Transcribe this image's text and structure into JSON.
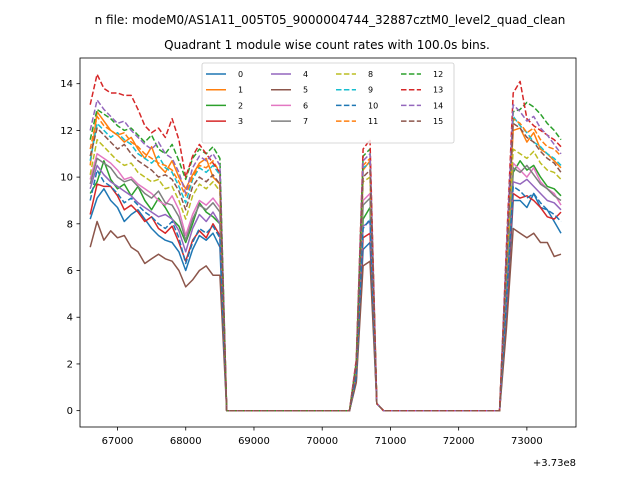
{
  "chart_data": {
    "type": "line",
    "suptitle": "n file: modeM0/AS1A11_005T05_9000004744_32887cztM0_level2_quad_clean",
    "title": "Quadrant 1 module wise count rates with 100.0s bins.",
    "xlabel": "",
    "ylabel": "",
    "x_offset_label": "+3.73e8",
    "xlim": [
      66450,
      73720
    ],
    "ylim": [
      -0.7,
      15.1
    ],
    "xticks": [
      67000,
      68000,
      69000,
      70000,
      71000,
      72000,
      73000
    ],
    "yticks": [
      0,
      2,
      4,
      6,
      8,
      10,
      12,
      14
    ],
    "legend_location": "upper-center",
    "legend_columns": 4,
    "x": [
      66600,
      66700,
      66800,
      66900,
      67000,
      67100,
      67200,
      67300,
      67400,
      67500,
      67600,
      67700,
      67800,
      67900,
      68000,
      68100,
      68200,
      68300,
      68400,
      68500,
      68600,
      68700,
      68800,
      68900,
      69000,
      69100,
      69200,
      69300,
      69400,
      69500,
      69600,
      69700,
      69800,
      69900,
      70000,
      70100,
      70200,
      70300,
      70400,
      70500,
      70600,
      70700,
      70800,
      70900,
      71000,
      71100,
      71200,
      71300,
      71400,
      71500,
      71600,
      71700,
      71800,
      71900,
      72000,
      72100,
      72200,
      72300,
      72400,
      72500,
      72600,
      72700,
      72800,
      72900,
      73000,
      73100,
      73200,
      73300,
      73400,
      73500
    ],
    "series": [
      {
        "name": "0",
        "color": "#1f77b4",
        "dash": false,
        "values": [
          8.2,
          9.1,
          9.5,
          9.0,
          8.7,
          8.1,
          8.4,
          8.6,
          8.2,
          7.8,
          7.5,
          7.3,
          7.2,
          6.8,
          6.0,
          6.9,
          7.5,
          7.3,
          7.6,
          7.0,
          0,
          0,
          0,
          0,
          0,
          0,
          0,
          0,
          0,
          0,
          0,
          0,
          0,
          0,
          0,
          0,
          0,
          0,
          0,
          1.3,
          6.9,
          7.2,
          0.3,
          0,
          0,
          0,
          0,
          0,
          0,
          0,
          0,
          0,
          0,
          0,
          0,
          0,
          0,
          0,
          0,
          0,
          0,
          4.0,
          9.0,
          9.0,
          8.7,
          9.3,
          8.7,
          8.6,
          8.1,
          7.6
        ]
      },
      {
        "name": "1",
        "color": "#ff7f0e",
        "dash": false,
        "values": [
          10.5,
          12.8,
          12.4,
          12.0,
          11.8,
          11.5,
          11.7,
          11.2,
          10.8,
          11.3,
          10.5,
          10.2,
          10.7,
          10.0,
          9.5,
          10.1,
          10.6,
          10.8,
          10.0,
          9.7,
          0,
          0,
          0,
          0,
          0,
          0,
          0,
          0,
          0,
          0,
          0,
          0,
          0,
          0,
          0,
          0,
          0,
          0,
          0,
          2.0,
          10.3,
          10.7,
          0.3,
          0,
          0,
          0,
          0,
          0,
          0,
          0,
          0,
          0,
          0,
          0,
          0,
          0,
          0,
          0,
          0,
          0,
          0,
          6.5,
          12.0,
          12.1,
          11.5,
          11.9,
          11.2,
          11.0,
          10.7,
          10.4
        ]
      },
      {
        "name": "2",
        "color": "#2ca02c",
        "dash": false,
        "values": [
          9.3,
          9.8,
          10.7,
          9.9,
          9.5,
          9.7,
          9.2,
          9.6,
          9.0,
          8.6,
          9.1,
          8.7,
          8.2,
          7.9,
          7.2,
          8.0,
          8.9,
          8.5,
          8.3,
          8.0,
          0,
          0,
          0,
          0,
          0,
          0,
          0,
          0,
          0,
          0,
          0,
          0,
          0,
          0,
          0,
          0,
          0,
          0,
          0,
          1.6,
          8.2,
          8.7,
          0.3,
          0,
          0,
          0,
          0,
          0,
          0,
          0,
          0,
          0,
          0,
          0,
          0,
          0,
          0,
          0,
          0,
          0,
          0,
          5.0,
          10.2,
          10.7,
          10.3,
          10.5,
          10.0,
          9.6,
          9.5,
          9.2
        ]
      },
      {
        "name": "3",
        "color": "#d62728",
        "dash": false,
        "values": [
          8.4,
          9.7,
          9.6,
          9.6,
          9.2,
          8.6,
          8.8,
          8.5,
          8.1,
          8.3,
          7.8,
          7.6,
          7.9,
          7.2,
          6.4,
          7.3,
          7.7,
          7.4,
          8.0,
          7.5,
          0,
          0,
          0,
          0,
          0,
          0,
          0,
          0,
          0,
          0,
          0,
          0,
          0,
          0,
          0,
          0,
          0,
          0,
          0,
          1.4,
          7.4,
          7.6,
          0.3,
          0,
          0,
          0,
          0,
          0,
          0,
          0,
          0,
          0,
          0,
          0,
          0,
          0,
          0,
          0,
          0,
          0,
          0,
          4.3,
          9.3,
          9.1,
          9.2,
          9.0,
          8.7,
          8.3,
          8.2,
          8.5
        ]
      },
      {
        "name": "4",
        "color": "#9467bd",
        "dash": false,
        "values": [
          9.5,
          10.5,
          10.1,
          9.8,
          9.6,
          9.4,
          9.2,
          8.9,
          8.7,
          8.5,
          8.3,
          8.4,
          8.2,
          7.7,
          6.8,
          7.8,
          8.4,
          8.1,
          8.5,
          8.0,
          0,
          0,
          0,
          0,
          0,
          0,
          0,
          0,
          0,
          0,
          0,
          0,
          0,
          0,
          0,
          0,
          0,
          0,
          0,
          1.5,
          7.9,
          8.1,
          0.3,
          0,
          0,
          0,
          0,
          0,
          0,
          0,
          0,
          0,
          0,
          0,
          0,
          0,
          0,
          0,
          0,
          0,
          0,
          4.5,
          9.8,
          9.7,
          9.9,
          9.6,
          9.3,
          9.0,
          8.9,
          8.6
        ]
      },
      {
        "name": "5",
        "color": "#8c564b",
        "dash": false,
        "values": [
          7.0,
          8.1,
          7.3,
          7.7,
          7.4,
          7.5,
          7.0,
          6.8,
          6.3,
          6.5,
          6.7,
          6.5,
          6.4,
          6.0,
          5.3,
          5.6,
          6.0,
          6.2,
          5.8,
          5.8,
          0,
          0,
          0,
          0,
          0,
          0,
          0,
          0,
          0,
          0,
          0,
          0,
          0,
          0,
          0,
          0,
          0,
          0,
          0,
          1.2,
          6.2,
          6.4,
          0.3,
          0,
          0,
          0,
          0,
          0,
          0,
          0,
          0,
          0,
          0,
          0,
          0,
          0,
          0,
          0,
          0,
          0,
          0,
          3.5,
          7.8,
          7.6,
          7.4,
          7.6,
          7.2,
          7.2,
          6.6,
          6.7
        ]
      },
      {
        "name": "6",
        "color": "#e377c2",
        "dash": false,
        "values": [
          9.9,
          11.0,
          10.8,
          10.6,
          10.3,
          9.9,
          10.0,
          9.7,
          9.5,
          9.3,
          9.0,
          8.8,
          9.2,
          8.6,
          7.5,
          8.4,
          9.0,
          8.8,
          9.1,
          8.7,
          0,
          0,
          0,
          0,
          0,
          0,
          0,
          0,
          0,
          0,
          0,
          0,
          0,
          0,
          0,
          0,
          0,
          0,
          0,
          1.7,
          9.0,
          9.3,
          0.3,
          0,
          0,
          0,
          0,
          0,
          0,
          0,
          0,
          0,
          0,
          0,
          0,
          0,
          0,
          0,
          0,
          0,
          0,
          5.2,
          10.6,
          10.3,
          10.0,
          10.4,
          9.8,
          9.5,
          9.3,
          8.8
        ]
      },
      {
        "name": "7",
        "color": "#7f7f7f",
        "dash": false,
        "values": [
          9.7,
          10.8,
          10.6,
          10.4,
          10.0,
          9.8,
          9.9,
          9.6,
          9.3,
          9.1,
          9.4,
          8.9,
          8.8,
          8.3,
          7.3,
          8.2,
          8.8,
          8.6,
          8.9,
          8.5,
          0,
          0,
          0,
          0,
          0,
          0,
          0,
          0,
          0,
          0,
          0,
          0,
          0,
          0,
          0,
          0,
          0,
          0,
          0,
          1.7,
          8.8,
          9.1,
          0.3,
          0,
          0,
          0,
          0,
          0,
          0,
          0,
          0,
          0,
          0,
          0,
          0,
          0,
          0,
          0,
          0,
          0,
          0,
          5.0,
          10.4,
          10.2,
          10.5,
          10.1,
          9.7,
          9.5,
          9.2,
          9.0
        ]
      },
      {
        "name": "8",
        "color": "#bcbd22",
        "dash": true,
        "values": [
          10.1,
          11.6,
          11.3,
          11.0,
          10.7,
          10.5,
          10.6,
          10.2,
          10.0,
          9.8,
          9.9,
          9.5,
          9.6,
          9.0,
          8.2,
          9.2,
          9.7,
          9.5,
          9.8,
          9.4,
          0,
          0,
          0,
          0,
          0,
          0,
          0,
          0,
          0,
          0,
          0,
          0,
          0,
          0,
          0,
          0,
          0,
          0,
          0,
          1.8,
          9.8,
          10.0,
          0.3,
          0,
          0,
          0,
          0,
          0,
          0,
          0,
          0,
          0,
          0,
          0,
          0,
          0,
          0,
          0,
          0,
          0,
          0,
          5.8,
          11.2,
          11.0,
          10.8,
          11.1,
          10.6,
          10.3,
          10.2,
          9.9
        ]
      },
      {
        "name": "9",
        "color": "#17becf",
        "dash": true,
        "values": [
          10.7,
          12.3,
          12.0,
          11.7,
          11.9,
          11.6,
          11.4,
          11.0,
          10.8,
          10.6,
          10.9,
          10.4,
          10.2,
          9.6,
          8.9,
          9.9,
          10.4,
          10.2,
          10.5,
          10.1,
          0,
          0,
          0,
          0,
          0,
          0,
          0,
          0,
          0,
          0,
          0,
          0,
          0,
          0,
          0,
          0,
          0,
          0,
          0,
          1.9,
          10.4,
          10.6,
          0.3,
          0,
          0,
          0,
          0,
          0,
          0,
          0,
          0,
          0,
          0,
          0,
          0,
          0,
          0,
          0,
          0,
          0,
          0,
          6.0,
          12.6,
          12.2,
          11.9,
          11.5,
          11.3,
          11.0,
          10.8,
          10.5
        ]
      },
      {
        "name": "10",
        "color": "#1f77b4",
        "dash": true,
        "values": [
          9.0,
          10.3,
          9.8,
          9.6,
          9.3,
          8.9,
          9.1,
          8.8,
          8.5,
          8.3,
          8.0,
          7.8,
          8.1,
          7.4,
          6.3,
          7.2,
          7.8,
          7.6,
          7.9,
          7.4,
          0,
          0,
          0,
          0,
          0,
          0,
          0,
          0,
          0,
          0,
          0,
          0,
          0,
          0,
          0,
          0,
          0,
          0,
          0,
          1.5,
          7.8,
          8.2,
          0.3,
          0,
          0,
          0,
          0,
          0,
          0,
          0,
          0,
          0,
          0,
          0,
          0,
          0,
          0,
          0,
          0,
          0,
          0,
          4.7,
          9.6,
          9.4,
          9.1,
          9.3,
          8.9,
          8.6,
          8.4,
          8.1
        ]
      },
      {
        "name": "11",
        "color": "#ff7f0e",
        "dash": true,
        "values": [
          11.2,
          12.6,
          12.2,
          12.0,
          11.8,
          11.9,
          11.5,
          11.3,
          11.0,
          10.8,
          10.6,
          10.5,
          10.3,
          9.8,
          9.2,
          10.0,
          10.5,
          10.4,
          10.7,
          10.2,
          0,
          0,
          0,
          0,
          0,
          0,
          0,
          0,
          0,
          0,
          0,
          0,
          0,
          0,
          0,
          0,
          0,
          0,
          0,
          2.0,
          10.5,
          10.8,
          0.3,
          0,
          0,
          0,
          0,
          0,
          0,
          0,
          0,
          0,
          0,
          0,
          0,
          0,
          0,
          0,
          0,
          0,
          0,
          6.2,
          12.5,
          12.3,
          11.9,
          12.1,
          11.6,
          11.3,
          11.2,
          10.9
        ]
      },
      {
        "name": "12",
        "color": "#2ca02c",
        "dash": true,
        "values": [
          11.6,
          12.9,
          12.7,
          12.5,
          12.2,
          12.0,
          12.1,
          11.8,
          11.5,
          11.8,
          11.2,
          11.0,
          11.4,
          10.7,
          9.9,
          10.8,
          11.2,
          11.0,
          11.3,
          10.8,
          0,
          0,
          0,
          0,
          0,
          0,
          0,
          0,
          0,
          0,
          0,
          0,
          0,
          0,
          0,
          0,
          0,
          0,
          0,
          2.1,
          10.9,
          11.2,
          0.3,
          0,
          0,
          0,
          0,
          0,
          0,
          0,
          0,
          0,
          0,
          0,
          0,
          0,
          0,
          0,
          0,
          0,
          0,
          6.6,
          12.8,
          12.9,
          13.2,
          13.0,
          12.7,
          12.3,
          12.0,
          11.6
        ]
      },
      {
        "name": "13",
        "color": "#d62728",
        "dash": true,
        "values": [
          13.1,
          14.4,
          13.8,
          13.6,
          13.6,
          13.5,
          13.5,
          12.9,
          12.2,
          11.9,
          12.1,
          11.7,
          12.5,
          11.6,
          10.0,
          10.9,
          11.4,
          11.0,
          10.6,
          10.2,
          0,
          0,
          0,
          0,
          0,
          0,
          0,
          0,
          0,
          0,
          0,
          0,
          0,
          0,
          0,
          0,
          0,
          0,
          0,
          2.2,
          11.2,
          11.6,
          0.3,
          0,
          0,
          0,
          0,
          0,
          0,
          0,
          0,
          0,
          0,
          0,
          0,
          0,
          0,
          0,
          0,
          0,
          0,
          7.0,
          13.6,
          14.1,
          12.5,
          12.2,
          12.0,
          11.8,
          11.6,
          11.3
        ]
      },
      {
        "name": "14",
        "color": "#9467bd",
        "dash": true,
        "values": [
          12.0,
          13.3,
          12.9,
          12.6,
          12.3,
          12.4,
          12.0,
          11.7,
          11.4,
          11.2,
          11.5,
          11.0,
          10.8,
          10.2,
          9.3,
          10.4,
          10.9,
          10.7,
          11.0,
          10.5,
          0,
          0,
          0,
          0,
          0,
          0,
          0,
          0,
          0,
          0,
          0,
          0,
          0,
          0,
          0,
          0,
          0,
          0,
          0,
          2.0,
          10.7,
          11.0,
          0.3,
          0,
          0,
          0,
          0,
          0,
          0,
          0,
          0,
          0,
          0,
          0,
          0,
          0,
          0,
          0,
          0,
          0,
          0,
          6.8,
          13.1,
          12.8,
          12.4,
          12.6,
          12.1,
          11.8,
          11.4,
          11.0
        ]
      },
      {
        "name": "15",
        "color": "#8c564b",
        "dash": true,
        "values": [
          10.9,
          12.1,
          11.8,
          11.5,
          11.2,
          11.4,
          11.0,
          10.7,
          10.5,
          10.3,
          10.0,
          10.1,
          9.9,
          9.4,
          8.6,
          9.6,
          10.0,
          9.8,
          10.1,
          9.7,
          0,
          0,
          0,
          0,
          0,
          0,
          0,
          0,
          0,
          0,
          0,
          0,
          0,
          0,
          0,
          0,
          0,
          0,
          0,
          1.9,
          10.0,
          10.3,
          0.3,
          0,
          0,
          0,
          0,
          0,
          0,
          0,
          0,
          0,
          0,
          0,
          0,
          0,
          0,
          0,
          0,
          0,
          0,
          6.3,
          12.3,
          12.1,
          11.7,
          11.5,
          11.1,
          10.8,
          10.6,
          10.2
        ]
      }
    ]
  }
}
